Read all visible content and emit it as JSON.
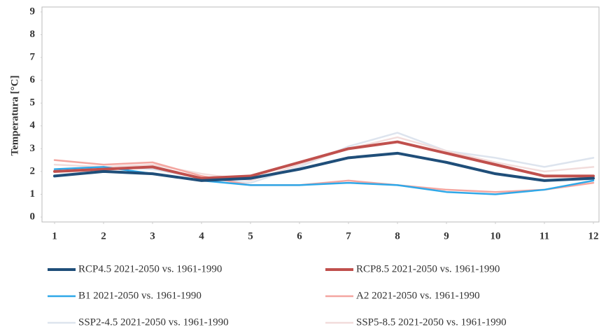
{
  "chart_data": {
    "type": "line",
    "y_label": "Temperatura [°C]",
    "x": [
      1,
      2,
      3,
      4,
      5,
      6,
      7,
      8,
      9,
      10,
      11,
      12
    ],
    "xlim": [
      1,
      12
    ],
    "xticks": [
      1,
      2,
      3,
      4,
      5,
      6,
      7,
      8,
      9,
      10,
      11,
      12
    ],
    "ylim": [
      0,
      9
    ],
    "yticks": [
      0,
      1,
      2,
      3,
      4,
      5,
      6,
      7,
      8,
      9
    ],
    "series": [
      {
        "name": "RCP4.5 2021-2050 vs. 1961-1990",
        "color": "#1f4e79",
        "values": [
          1.8,
          2.0,
          1.9,
          1.6,
          1.7,
          2.1,
          2.6,
          2.8,
          2.4,
          1.9,
          1.6,
          1.7
        ]
      },
      {
        "name": "RCP8.5 2021-2050 vs. 1961-1990",
        "color": "#c0504d",
        "values": [
          2.0,
          2.1,
          2.2,
          1.7,
          1.8,
          2.4,
          3.0,
          3.3,
          2.8,
          2.3,
          1.8,
          1.8
        ]
      },
      {
        "name": "B1 2021-2050 vs. 1961-1990",
        "color": "#2fa8e8",
        "values": [
          2.1,
          2.2,
          1.9,
          1.6,
          1.4,
          1.4,
          1.5,
          1.4,
          1.1,
          1.0,
          1.2,
          1.6
        ]
      },
      {
        "name": "A2 2021-2050 vs. 1961-1990",
        "color": "#f4a6a0",
        "values": [
          2.5,
          2.3,
          2.4,
          1.8,
          1.4,
          1.4,
          1.6,
          1.4,
          1.2,
          1.1,
          1.2,
          1.5
        ]
      },
      {
        "name": "SSP2-4.5 2021-2050 vs. 1961-1990",
        "color": "#dde4ee",
        "values": [
          2.0,
          2.2,
          2.1,
          1.7,
          1.5,
          2.2,
          3.1,
          3.7,
          2.9,
          2.6,
          2.2,
          2.6
        ]
      },
      {
        "name": "SSP5-8.5 2021-2050 vs. 1961-1990",
        "color": "#f2dcdb",
        "values": [
          2.3,
          2.2,
          2.3,
          1.9,
          1.6,
          2.3,
          3.0,
          3.5,
          2.9,
          2.4,
          2.0,
          2.2
        ]
      }
    ]
  }
}
